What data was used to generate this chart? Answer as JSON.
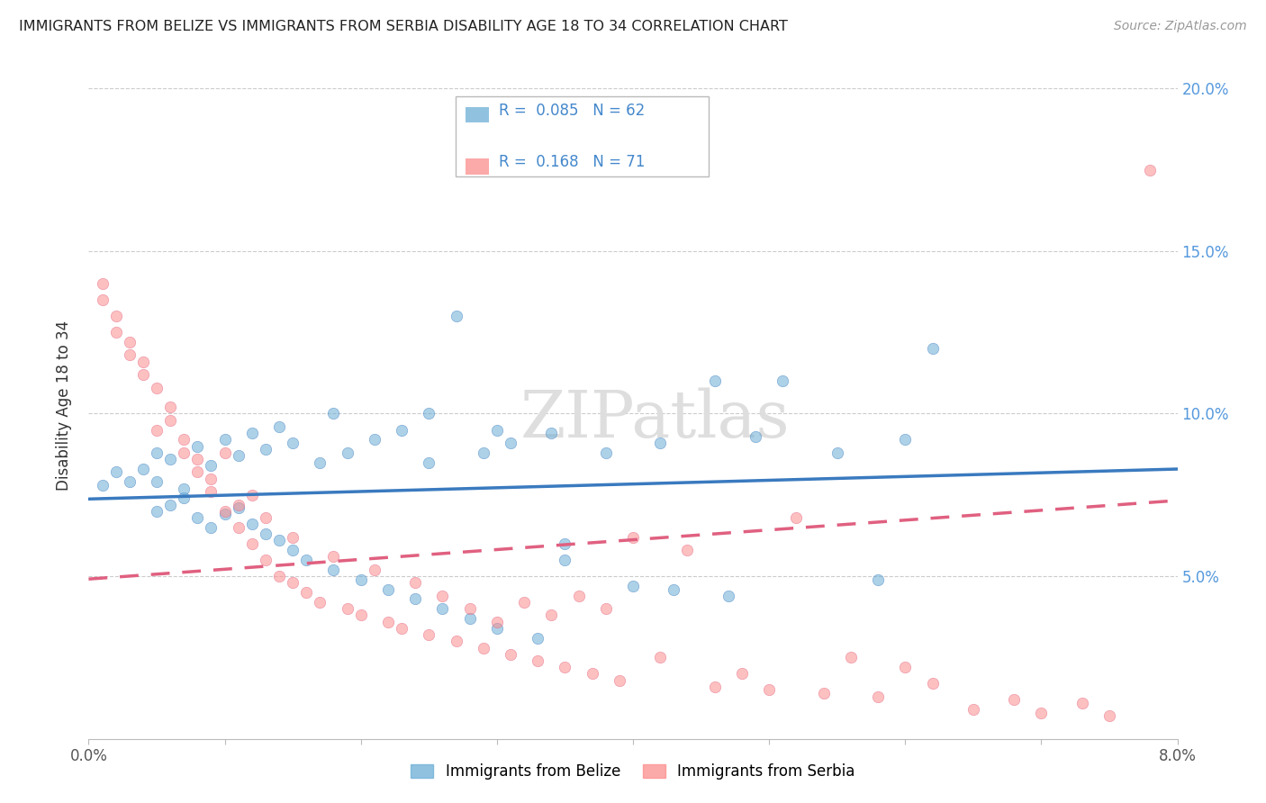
{
  "title": "IMMIGRANTS FROM BELIZE VS IMMIGRANTS FROM SERBIA DISABILITY AGE 18 TO 34 CORRELATION CHART",
  "source": "Source: ZipAtlas.com",
  "ylabel": "Disability Age 18 to 34",
  "xmin": 0.0,
  "xmax": 0.08,
  "ymin": 0.0,
  "ymax": 0.205,
  "yticks": [
    0.05,
    0.1,
    0.15,
    0.2
  ],
  "ytick_labels": [
    "5.0%",
    "10.0%",
    "15.0%",
    "20.0%"
  ],
  "belize_color": "#6baed6",
  "serbia_color": "#fc8d8d",
  "belize_line_color": "#3a7abf",
  "serbia_line_color": "#e06080",
  "belize_R": 0.085,
  "belize_N": 62,
  "serbia_R": 0.168,
  "serbia_N": 71,
  "watermark": "ZIPatlas",
  "belize_scatter_x": [
    0.001,
    0.002,
    0.003,
    0.004,
    0.005,
    0.005,
    0.005,
    0.006,
    0.006,
    0.007,
    0.007,
    0.008,
    0.008,
    0.009,
    0.009,
    0.01,
    0.01,
    0.011,
    0.011,
    0.012,
    0.012,
    0.013,
    0.013,
    0.014,
    0.014,
    0.015,
    0.015,
    0.016,
    0.017,
    0.018,
    0.019,
    0.02,
    0.021,
    0.022,
    0.023,
    0.024,
    0.025,
    0.026,
    0.027,
    0.028,
    0.029,
    0.03,
    0.031,
    0.033,
    0.034,
    0.035,
    0.038,
    0.04,
    0.042,
    0.043,
    0.046,
    0.047,
    0.049,
    0.051,
    0.055,
    0.058,
    0.06,
    0.062,
    0.035,
    0.018,
    0.025,
    0.03
  ],
  "belize_scatter_y": [
    0.078,
    0.082,
    0.079,
    0.083,
    0.07,
    0.079,
    0.088,
    0.072,
    0.086,
    0.074,
    0.077,
    0.068,
    0.09,
    0.065,
    0.084,
    0.092,
    0.069,
    0.087,
    0.071,
    0.066,
    0.094,
    0.063,
    0.089,
    0.061,
    0.096,
    0.058,
    0.091,
    0.055,
    0.085,
    0.052,
    0.088,
    0.049,
    0.092,
    0.046,
    0.095,
    0.043,
    0.085,
    0.04,
    0.13,
    0.037,
    0.088,
    0.034,
    0.091,
    0.031,
    0.094,
    0.055,
    0.088,
    0.047,
    0.091,
    0.046,
    0.11,
    0.044,
    0.093,
    0.11,
    0.088,
    0.049,
    0.092,
    0.12,
    0.06,
    0.1,
    0.1,
    0.095
  ],
  "serbia_scatter_x": [
    0.001,
    0.001,
    0.002,
    0.002,
    0.003,
    0.003,
    0.004,
    0.004,
    0.005,
    0.005,
    0.006,
    0.006,
    0.007,
    0.007,
    0.008,
    0.008,
    0.009,
    0.009,
    0.01,
    0.01,
    0.011,
    0.011,
    0.012,
    0.012,
    0.013,
    0.013,
    0.014,
    0.015,
    0.015,
    0.016,
    0.017,
    0.018,
    0.019,
    0.02,
    0.021,
    0.022,
    0.023,
    0.024,
    0.025,
    0.026,
    0.027,
    0.028,
    0.029,
    0.03,
    0.031,
    0.032,
    0.033,
    0.034,
    0.035,
    0.036,
    0.037,
    0.038,
    0.039,
    0.04,
    0.042,
    0.044,
    0.046,
    0.048,
    0.05,
    0.052,
    0.054,
    0.056,
    0.058,
    0.06,
    0.062,
    0.065,
    0.068,
    0.07,
    0.073,
    0.075,
    0.078
  ],
  "serbia_scatter_y": [
    0.135,
    0.14,
    0.125,
    0.13,
    0.118,
    0.122,
    0.112,
    0.116,
    0.095,
    0.108,
    0.098,
    0.102,
    0.088,
    0.092,
    0.082,
    0.086,
    0.076,
    0.08,
    0.07,
    0.088,
    0.065,
    0.072,
    0.06,
    0.075,
    0.055,
    0.068,
    0.05,
    0.048,
    0.062,
    0.045,
    0.042,
    0.056,
    0.04,
    0.038,
    0.052,
    0.036,
    0.034,
    0.048,
    0.032,
    0.044,
    0.03,
    0.04,
    0.028,
    0.036,
    0.026,
    0.042,
    0.024,
    0.038,
    0.022,
    0.044,
    0.02,
    0.04,
    0.018,
    0.062,
    0.025,
    0.058,
    0.016,
    0.02,
    0.015,
    0.068,
    0.014,
    0.025,
    0.013,
    0.022,
    0.017,
    0.009,
    0.012,
    0.008,
    0.011,
    0.007,
    0.175
  ]
}
